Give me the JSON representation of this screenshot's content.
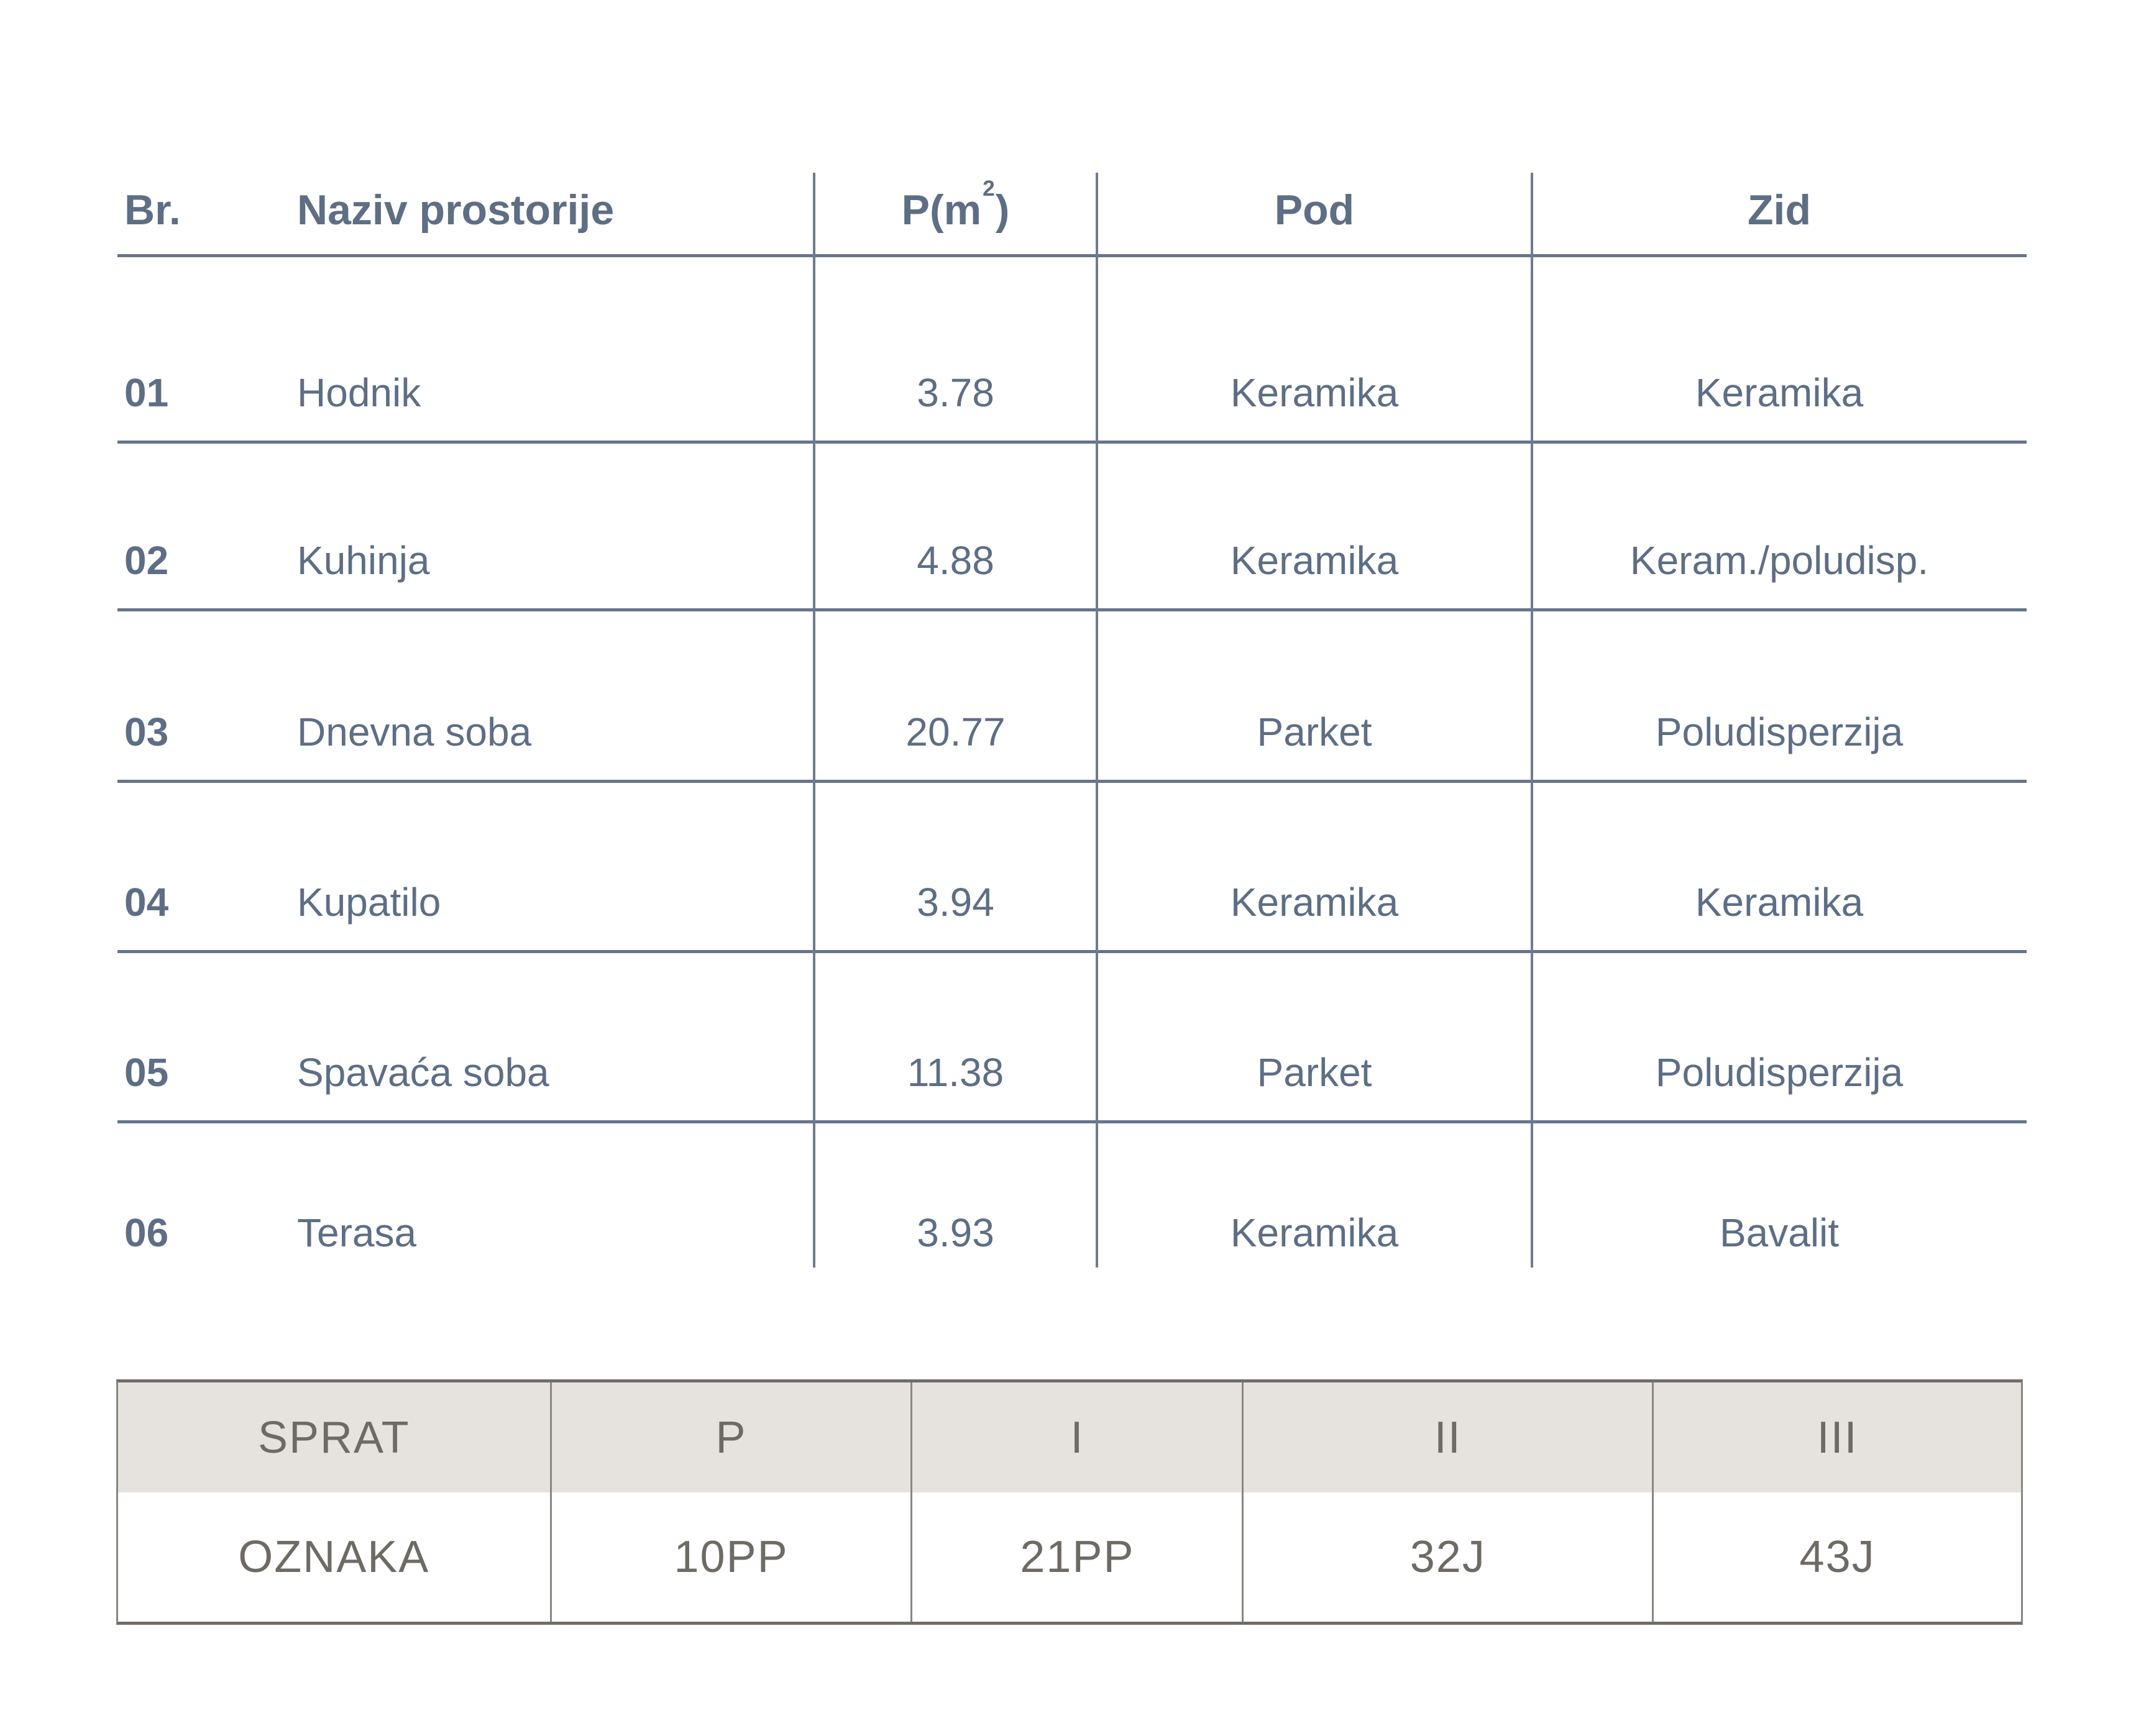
{
  "main_table": {
    "headers": {
      "br": "Br.",
      "naziv": "Naziv prostorije",
      "area_prefix": "P(m",
      "area_sup": "2",
      "area_suffix": ")",
      "pod": "Pod",
      "zid": "Zid"
    },
    "rows": [
      {
        "br": "01",
        "naziv": "Hodnik",
        "area": "3.78",
        "pod": "Keramika",
        "zid": "Keramika"
      },
      {
        "br": "02",
        "naziv": "Kuhinja",
        "area": "4.88",
        "pod": "Keramika",
        "zid": "Keram./poludisp."
      },
      {
        "br": "03",
        "naziv": "Dnevna soba",
        "area": "20.77",
        "pod": "Parket",
        "zid": "Poludisperzija"
      },
      {
        "br": "04",
        "naziv": "Kupatilo",
        "area": "3.94",
        "pod": "Keramika",
        "zid": "Keramika"
      },
      {
        "br": "05",
        "naziv": "Spavaća soba",
        "area": "11.38",
        "pod": "Parket",
        "zid": "Poludisperzija"
      },
      {
        "br": "06",
        "naziv": "Terasa",
        "area": "3.93",
        "pod": "Keramika",
        "zid": "Bavalit"
      }
    ]
  },
  "floor_table": {
    "labels": {
      "sprat": "SPRAT",
      "oznaka": "OZNAKA"
    },
    "floors": [
      "P",
      "I",
      "II",
      "III"
    ],
    "marks": [
      "10PP",
      "21PP",
      "32J",
      "43J"
    ]
  },
  "colors": {
    "table_text": "#5d6e85",
    "table_line": "#66748b",
    "footer_text": "#6e6a64",
    "footer_header_bg": "#e6e2dd",
    "footer_border": "#8a8680"
  }
}
